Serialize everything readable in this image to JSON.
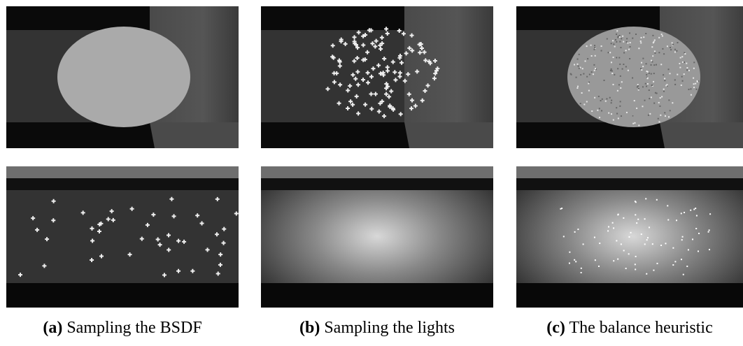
{
  "figure": {
    "captions": [
      {
        "label": "(a)",
        "text": "Sampling the BSDF"
      },
      {
        "label": "(b)",
        "text": "Sampling the lights"
      },
      {
        "label": "(c)",
        "text": "The balance heuristic"
      }
    ]
  }
}
